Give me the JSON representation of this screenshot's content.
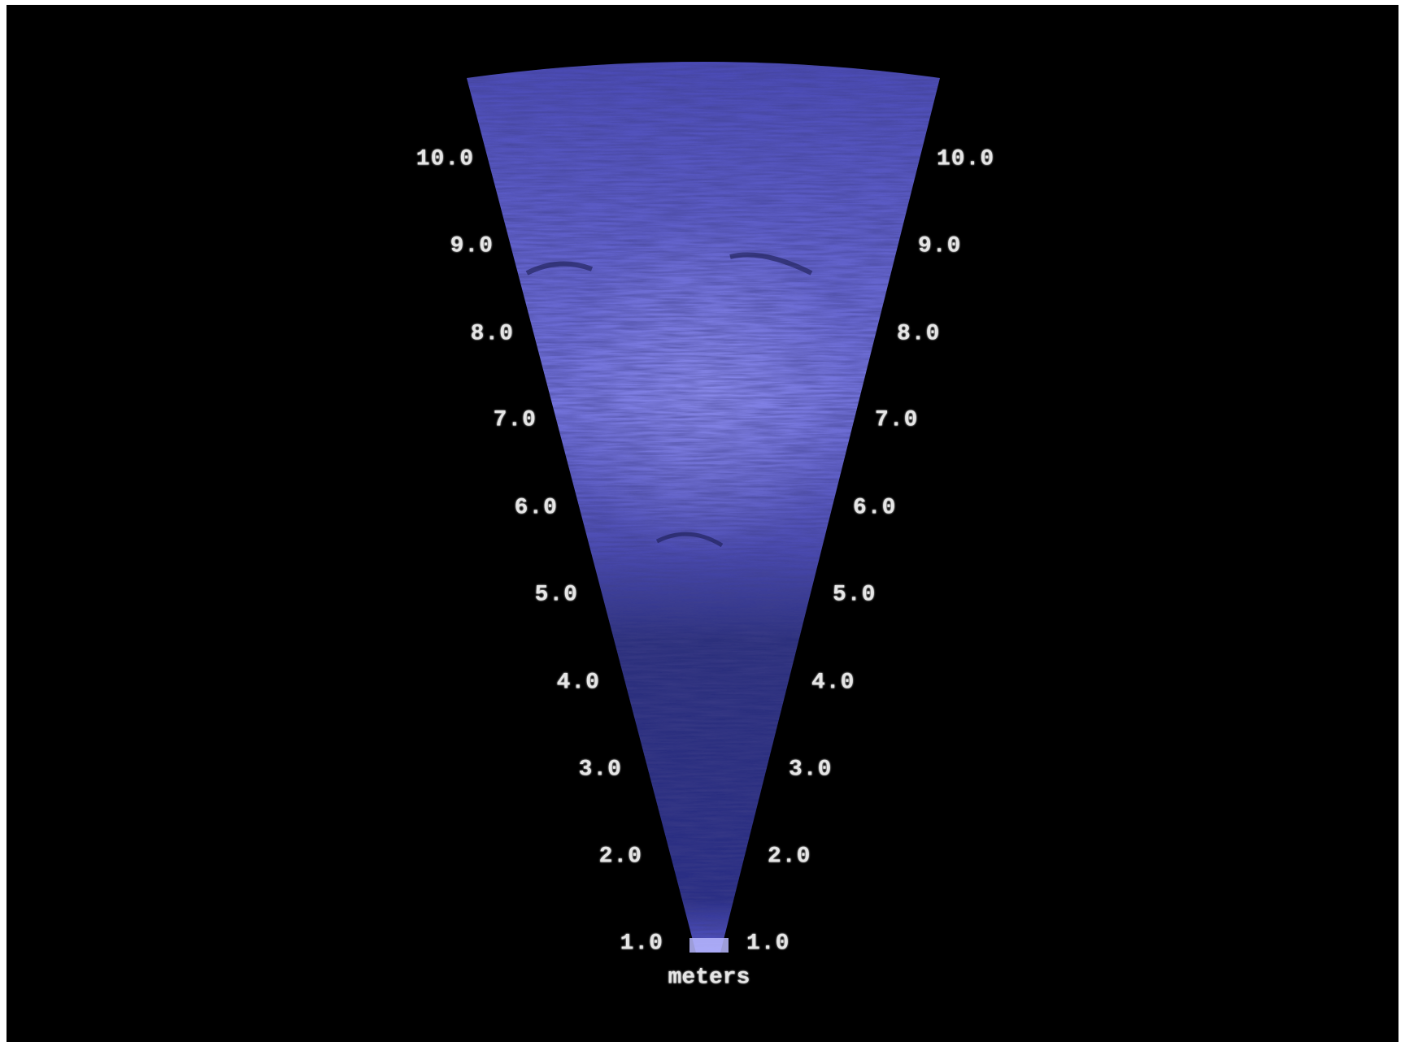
{
  "sonar": {
    "colors": {
      "background": "#000000",
      "beam_dark": "#262a78",
      "beam_bright": "#8c8cf2",
      "label": "#e6e6e6"
    },
    "range_labels_left": [
      "10.0",
      "9.0",
      "8.0",
      "7.0",
      "6.0",
      "5.0",
      "4.0",
      "3.0",
      "2.0",
      "1.0"
    ],
    "range_labels_right": [
      "10.0",
      "9.0",
      "8.0",
      "7.0",
      "6.0",
      "5.0",
      "4.0",
      "3.0",
      "2.0",
      "1.0"
    ],
    "units_label": "meters"
  }
}
